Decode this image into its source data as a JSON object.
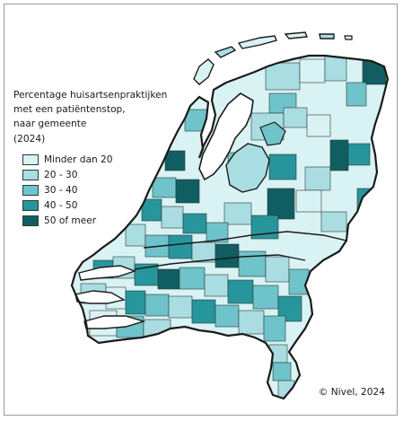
{
  "legend": {
    "title_lines": [
      "Percentage huisartsenpraktijken",
      "met een patiëntenstop,",
      "naar gemeente",
      "(2024)"
    ],
    "classes": [
      {
        "label": "Minder dan 20",
        "color": "#d9f2f3"
      },
      {
        "label": "20 - 30",
        "color": "#a9dde1"
      },
      {
        "label": "30 - 40",
        "color": "#6fc3ca"
      },
      {
        "label": "40 - 50",
        "color": "#27959c"
      },
      {
        "label": "50 of meer",
        "color": "#105e62"
      }
    ]
  },
  "credit": "© Nivel, 2024",
  "colors": {
    "border": "#1a1a1a",
    "frame": "#9a9a9a"
  }
}
